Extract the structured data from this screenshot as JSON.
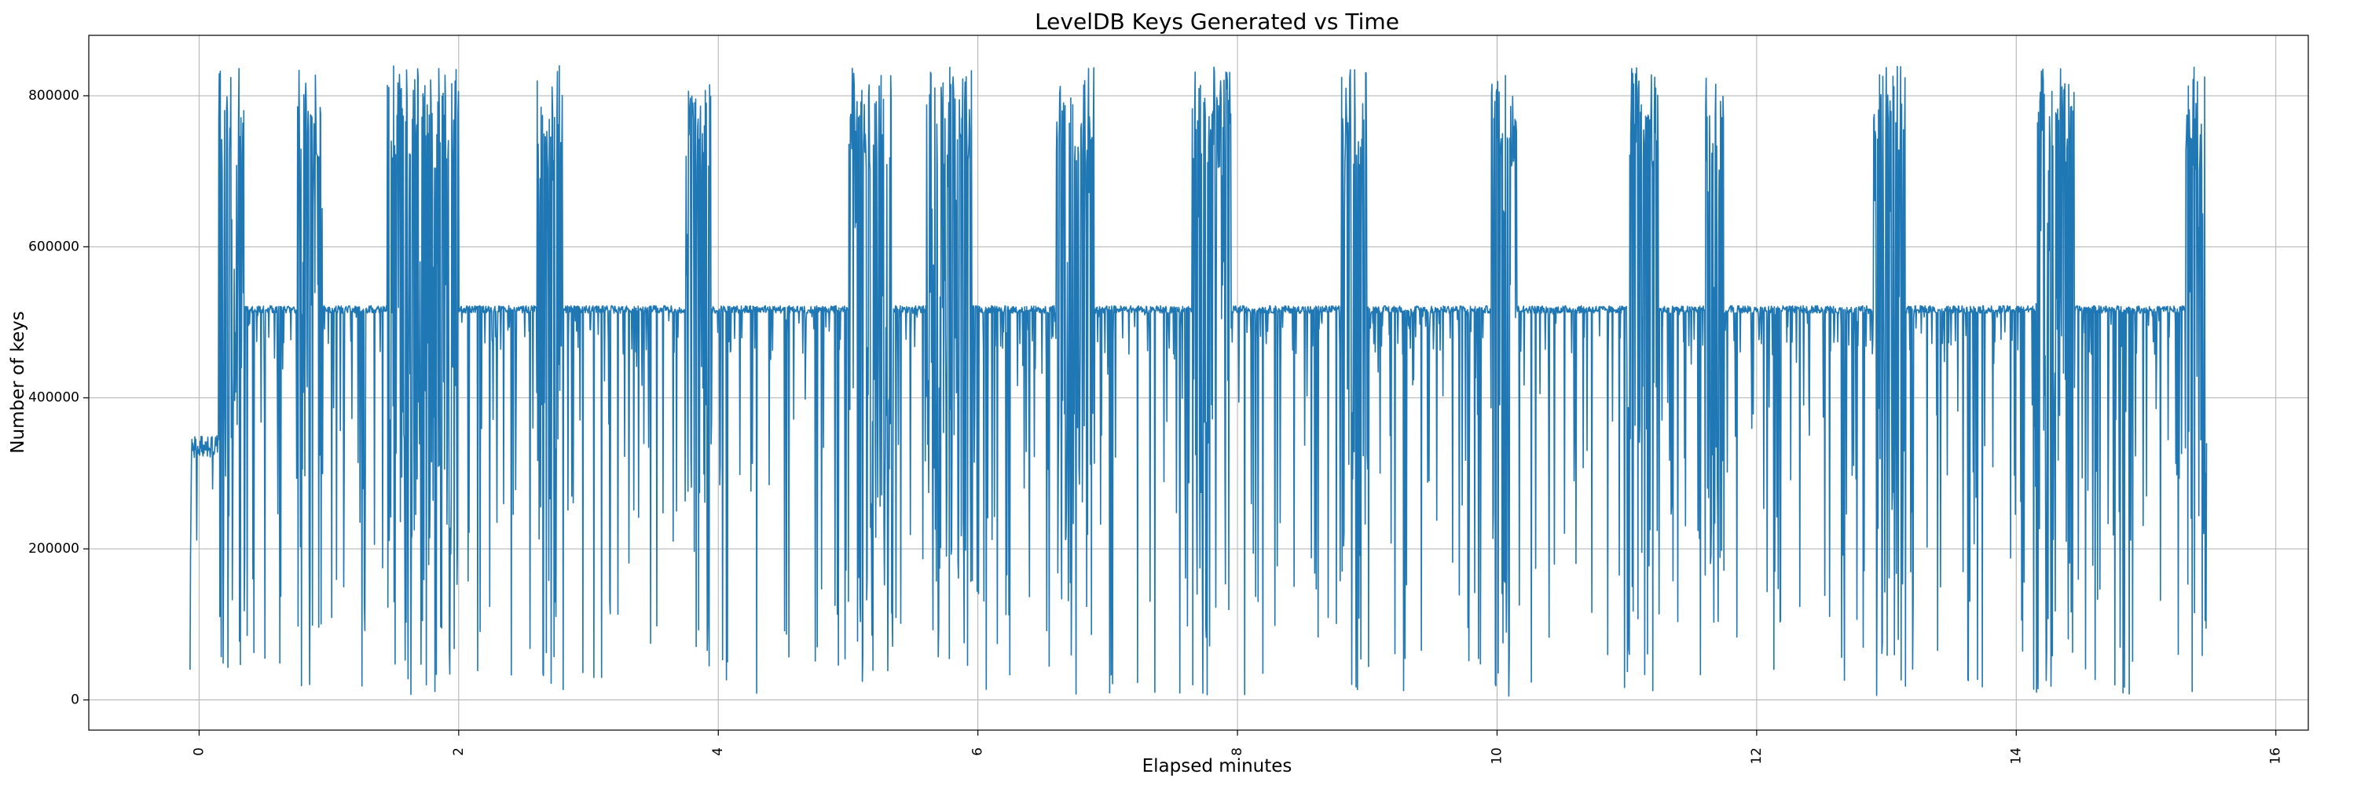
{
  "chart_data": {
    "type": "line",
    "title": "LevelDB Keys Generated vs Time",
    "xlabel": "Elapsed minutes",
    "ylabel": "Number of keys",
    "xlim": [
      -0.85,
      16.25
    ],
    "ylim": [
      -40000,
      880000
    ],
    "xticks": [
      0,
      2,
      4,
      6,
      8,
      10,
      12,
      14,
      16
    ],
    "xtick_labels": [
      "0",
      "2",
      "4",
      "6",
      "8",
      "10",
      "12",
      "14",
      "16"
    ],
    "yticks": [
      0,
      200000,
      400000,
      600000,
      800000
    ],
    "ytick_labels": [
      "0",
      "200000",
      "400000",
      "600000",
      "800000"
    ],
    "grid": true,
    "legend": "none",
    "line_color": "#1f77b4",
    "series": [
      {
        "x_range": [
          -0.07,
          15.47
        ],
        "baseline": 517000,
        "start_values": [
          40000,
          190000,
          255000,
          320000,
          345000,
          330000,
          340000,
          335000,
          330000
        ],
        "end_values": [
          760000,
          300000,
          95000,
          340000
        ],
        "burst_regions": [
          [
            0.15,
            0.35
          ],
          [
            0.75,
            0.95
          ],
          [
            1.45,
            2.0
          ],
          [
            2.6,
            2.8
          ],
          [
            3.75,
            3.95
          ],
          [
            5.0,
            5.35
          ],
          [
            5.6,
            5.95
          ],
          [
            6.6,
            6.9
          ],
          [
            7.65,
            7.95
          ],
          [
            8.8,
            9.0
          ],
          [
            9.95,
            10.15
          ],
          [
            11.0,
            11.25
          ],
          [
            11.6,
            11.75
          ],
          [
            12.9,
            13.15
          ],
          [
            14.15,
            14.45
          ],
          [
            15.3,
            15.47
          ]
        ],
        "range_min": 5000,
        "range_max": 840000
      }
    ]
  }
}
